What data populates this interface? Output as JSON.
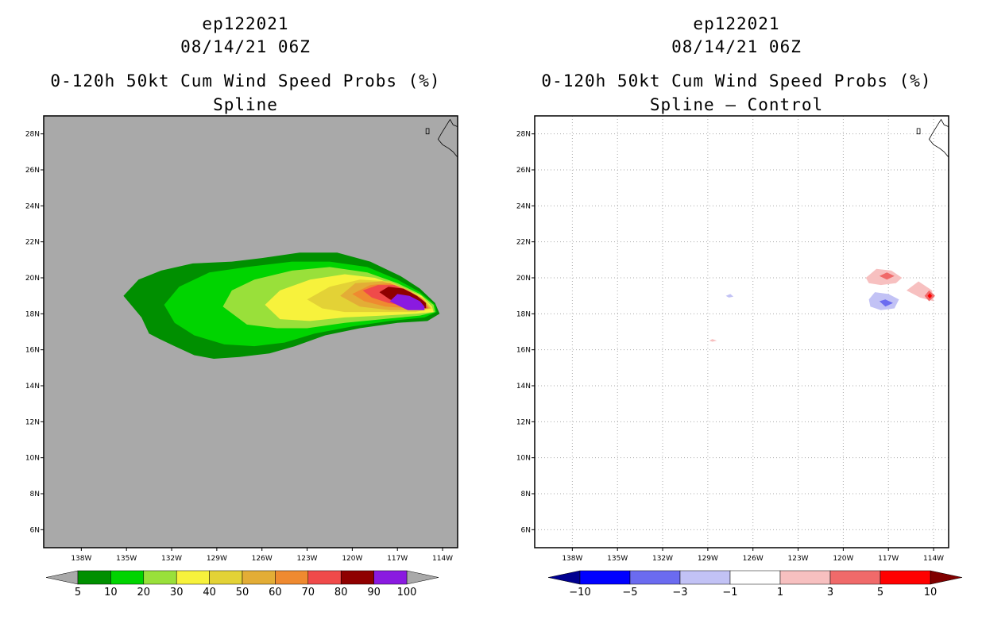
{
  "panels": [
    {
      "storm_id": "ep122021",
      "datetime": "08/14/21 06Z",
      "title": "0-120h 50kt Cum Wind Speed Probs (%)",
      "subtitle": "Spline"
    },
    {
      "storm_id": "ep122021",
      "datetime": "08/14/21 06Z",
      "title": "0-120h 50kt Cum Wind Speed Probs (%)",
      "subtitle": "Spline — Control"
    }
  ],
  "chart_data": [
    {
      "type": "heatmap",
      "title": "0-120h 50kt Cum Wind Speed Probs (%)",
      "subtitle": "Spline",
      "xlim": [
        -140.5,
        -113
      ],
      "ylim": [
        5,
        29
      ],
      "x_ticks": [
        "138W",
        "135W",
        "132W",
        "129W",
        "126W",
        "123W",
        "120W",
        "117W",
        "114W"
      ],
      "x_tick_values": [
        -138,
        -135,
        -132,
        -129,
        -126,
        -123,
        -120,
        -117,
        -114
      ],
      "y_ticks": [
        "6N",
        "8N",
        "10N",
        "12N",
        "14N",
        "16N",
        "18N",
        "20N",
        "22N",
        "24N",
        "26N",
        "28N"
      ],
      "y_tick_values": [
        6,
        8,
        10,
        12,
        14,
        16,
        18,
        20,
        22,
        24,
        26,
        28
      ],
      "grid": false,
      "background_color": "#a9a9a9",
      "colorbar": {
        "labels": [
          "5",
          "10",
          "20",
          "30",
          "40",
          "50",
          "60",
          "70",
          "80",
          "90",
          "100"
        ],
        "colors": [
          "#008f00",
          "#00d400",
          "#99e03a",
          "#f7f23c",
          "#e3d236",
          "#e3ad36",
          "#ef8a30",
          "#f04a4a",
          "#8f0000",
          "#8a1ae0"
        ],
        "low_color": "#a9a9a9",
        "high_color": "#a9a9a9"
      },
      "contours": [
        {
          "level": "5",
          "color": "#008f00",
          "points": [
            [
              -135.2,
              19.0
            ],
            [
              -134.2,
              19.9
            ],
            [
              -132.7,
              20.4
            ],
            [
              -130.6,
              20.8
            ],
            [
              -128.0,
              20.9
            ],
            [
              -126.0,
              21.1
            ],
            [
              -123.5,
              21.4
            ],
            [
              -121.0,
              21.4
            ],
            [
              -118.8,
              20.9
            ],
            [
              -116.8,
              20.1
            ],
            [
              -115.5,
              19.4
            ],
            [
              -114.5,
              18.6
            ],
            [
              -114.2,
              18.0
            ],
            [
              -115.0,
              17.6
            ],
            [
              -117.0,
              17.5
            ],
            [
              -119.5,
              17.2
            ],
            [
              -121.8,
              16.8
            ],
            [
              -123.8,
              16.2
            ],
            [
              -125.5,
              15.8
            ],
            [
              -127.5,
              15.6
            ],
            [
              -129.2,
              15.5
            ],
            [
              -130.5,
              15.7
            ],
            [
              -131.8,
              16.2
            ],
            [
              -132.8,
              16.6
            ],
            [
              -133.5,
              16.9
            ],
            [
              -134.0,
              17.8
            ]
          ]
        },
        {
          "level": "10",
          "color": "#00d400",
          "points": [
            [
              -132.5,
              18.5
            ],
            [
              -131.5,
              19.5
            ],
            [
              -129.5,
              20.3
            ],
            [
              -127.0,
              20.6
            ],
            [
              -124.0,
              20.9
            ],
            [
              -121.5,
              20.9
            ],
            [
              -119.0,
              20.6
            ],
            [
              -117.0,
              19.9
            ],
            [
              -115.5,
              19.2
            ],
            [
              -114.5,
              18.5
            ],
            [
              -114.4,
              18.1
            ],
            [
              -115.2,
              17.8
            ],
            [
              -117.5,
              17.6
            ],
            [
              -120.0,
              17.3
            ],
            [
              -122.5,
              16.9
            ],
            [
              -124.5,
              16.4
            ],
            [
              -126.5,
              16.2
            ],
            [
              -128.5,
              16.3
            ],
            [
              -130.5,
              16.8
            ],
            [
              -131.8,
              17.5
            ]
          ]
        },
        {
          "level": "20",
          "color": "#99e03a",
          "points": [
            [
              -128.6,
              18.4
            ],
            [
              -128.0,
              19.3
            ],
            [
              -126.5,
              19.9
            ],
            [
              -124.0,
              20.4
            ],
            [
              -121.5,
              20.6
            ],
            [
              -119.0,
              20.3
            ],
            [
              -117.0,
              19.7
            ],
            [
              -115.5,
              19.1
            ],
            [
              -114.6,
              18.5
            ],
            [
              -114.5,
              18.1
            ],
            [
              -115.5,
              17.9
            ],
            [
              -118.0,
              17.7
            ],
            [
              -120.5,
              17.5
            ],
            [
              -123.0,
              17.2
            ],
            [
              -125.0,
              17.2
            ],
            [
              -127.0,
              17.4
            ]
          ]
        },
        {
          "level": "30",
          "color": "#f7f23c",
          "points": [
            [
              -125.8,
              18.5
            ],
            [
              -124.8,
              19.3
            ],
            [
              -122.8,
              19.9
            ],
            [
              -120.5,
              20.2
            ],
            [
              -118.5,
              20.0
            ],
            [
              -116.8,
              19.5
            ],
            [
              -115.4,
              19.0
            ],
            [
              -114.7,
              18.4
            ],
            [
              -114.6,
              18.1
            ],
            [
              -115.8,
              18.0
            ],
            [
              -118.0,
              17.9
            ],
            [
              -120.5,
              17.8
            ],
            [
              -122.8,
              17.6
            ],
            [
              -124.8,
              17.7
            ]
          ]
        },
        {
          "level": "40",
          "color": "#e3d236",
          "points": [
            [
              -123.0,
              18.8
            ],
            [
              -121.5,
              19.5
            ],
            [
              -119.5,
              19.9
            ],
            [
              -117.5,
              19.8
            ],
            [
              -116.2,
              19.3
            ],
            [
              -115.2,
              18.8
            ],
            [
              -114.7,
              18.3
            ],
            [
              -115.8,
              18.1
            ],
            [
              -118.0,
              18.1
            ],
            [
              -120.5,
              18.1
            ],
            [
              -122.0,
              18.3
            ]
          ]
        },
        {
          "level": "50",
          "color": "#e3ad36",
          "points": [
            [
              -120.8,
              19.0
            ],
            [
              -119.8,
              19.7
            ],
            [
              -118.0,
              19.8
            ],
            [
              -116.5,
              19.4
            ],
            [
              -115.4,
              18.9
            ],
            [
              -114.8,
              18.3
            ],
            [
              -115.8,
              18.2
            ],
            [
              -117.5,
              18.2
            ],
            [
              -119.5,
              18.4
            ]
          ]
        },
        {
          "level": "60",
          "color": "#ef8a30",
          "points": [
            [
              -120.0,
              19.1
            ],
            [
              -118.8,
              19.6
            ],
            [
              -117.5,
              19.7
            ],
            [
              -116.3,
              19.3
            ],
            [
              -115.3,
              18.8
            ],
            [
              -114.9,
              18.3
            ],
            [
              -116.0,
              18.3
            ],
            [
              -117.8,
              18.4
            ],
            [
              -119.2,
              18.7
            ]
          ]
        },
        {
          "level": "70",
          "color": "#f04a4a",
          "points": [
            [
              -119.3,
              19.3
            ],
            [
              -118.3,
              19.6
            ],
            [
              -117.2,
              19.6
            ],
            [
              -116.1,
              19.2
            ],
            [
              -115.2,
              18.7
            ],
            [
              -115.0,
              18.3
            ],
            [
              -116.2,
              18.4
            ],
            [
              -117.6,
              18.6
            ],
            [
              -118.7,
              18.9
            ]
          ]
        },
        {
          "level": "80",
          "color": "#8f0000",
          "points": [
            [
              -118.2,
              19.2
            ],
            [
              -117.6,
              19.5
            ],
            [
              -116.6,
              19.4
            ],
            [
              -115.7,
              19.0
            ],
            [
              -115.1,
              18.6
            ],
            [
              -115.1,
              18.3
            ],
            [
              -116.4,
              18.5
            ],
            [
              -117.5,
              18.8
            ]
          ]
        },
        {
          "level": "90",
          "color": "#8a1ae0",
          "points": [
            [
              -117.5,
              18.7
            ],
            [
              -117.0,
              19.1
            ],
            [
              -116.2,
              19.0
            ],
            [
              -115.5,
              18.7
            ],
            [
              -115.2,
              18.4
            ],
            [
              -115.2,
              18.2
            ],
            [
              -116.3,
              18.2
            ],
            [
              -116.8,
              18.4
            ]
          ]
        }
      ]
    },
    {
      "type": "heatmap",
      "title": "0-120h 50kt Cum Wind Speed Probs (%)",
      "subtitle": "Spline — Control",
      "xlim": [
        -140.5,
        -113
      ],
      "ylim": [
        5,
        29
      ],
      "x_ticks": [
        "138W",
        "135W",
        "132W",
        "129W",
        "126W",
        "123W",
        "120W",
        "117W",
        "114W"
      ],
      "x_tick_values": [
        -138,
        -135,
        -132,
        -129,
        -126,
        -123,
        -120,
        -117,
        -114
      ],
      "y_ticks": [
        "6N",
        "8N",
        "10N",
        "12N",
        "14N",
        "16N",
        "18N",
        "20N",
        "22N",
        "24N",
        "26N",
        "28N"
      ],
      "y_tick_values": [
        6,
        8,
        10,
        12,
        14,
        16,
        18,
        20,
        22,
        24,
        26,
        28
      ],
      "grid": true,
      "background_color": "#ffffff",
      "colorbar": {
        "labels": [
          "−10",
          "−5",
          "−3",
          "−1",
          "1",
          "3",
          "5",
          "10"
        ],
        "colors": [
          "#0000ff",
          "#6b6bf0",
          "#c2c2f5",
          "#ffffff",
          "#f7c0c0",
          "#f06a6a",
          "#ff0000"
        ],
        "low_color": "#000090",
        "high_color": "#800000"
      },
      "contours": [
        {
          "level": "1",
          "color": "#f7c0c0",
          "points": [
            [
              -118.5,
              20.0
            ],
            [
              -117.8,
              20.5
            ],
            [
              -116.8,
              20.4
            ],
            [
              -116.1,
              20.0
            ],
            [
              -116.5,
              19.7
            ],
            [
              -117.5,
              19.6
            ],
            [
              -118.3,
              19.7
            ]
          ]
        },
        {
          "level": "3",
          "color": "#f06a6a",
          "points": [
            [
              -117.6,
              20.1
            ],
            [
              -117.1,
              20.3
            ],
            [
              -116.6,
              20.1
            ],
            [
              -117.1,
              19.9
            ]
          ]
        },
        {
          "level": "-1",
          "color": "#c2c2f5",
          "points": [
            [
              -118.3,
              18.8
            ],
            [
              -117.9,
              19.2
            ],
            [
              -117.0,
              19.1
            ],
            [
              -116.3,
              18.8
            ],
            [
              -116.6,
              18.3
            ],
            [
              -117.5,
              18.2
            ],
            [
              -118.2,
              18.4
            ]
          ]
        },
        {
          "level": "-3",
          "color": "#6b6bf0",
          "points": [
            [
              -117.6,
              18.7
            ],
            [
              -117.2,
              18.8
            ],
            [
              -116.7,
              18.6
            ],
            [
              -117.2,
              18.4
            ]
          ]
        },
        {
          "level": "1",
          "color": "#f7c0c0",
          "points": [
            [
              -115.8,
              19.3
            ],
            [
              -115.0,
              19.8
            ],
            [
              -114.1,
              19.3
            ],
            [
              -114.0,
              18.7
            ],
            [
              -114.9,
              18.9
            ]
          ]
        },
        {
          "level": "3",
          "color": "#f06a6a",
          "points": [
            [
              -114.6,
              19.0
            ],
            [
              -114.3,
              19.3
            ],
            [
              -113.9,
              19.0
            ],
            [
              -114.3,
              18.7
            ]
          ]
        },
        {
          "level": "5",
          "color": "#ff0000",
          "points": [
            [
              -114.4,
              19.0
            ],
            [
              -114.25,
              19.15
            ],
            [
              -114.1,
              19.0
            ],
            [
              -114.25,
              18.85
            ]
          ]
        },
        {
          "level": "-1",
          "color": "#c2c2f5",
          "points": [
            [
              -127.8,
              19.0
            ],
            [
              -127.5,
              19.1
            ],
            [
              -127.3,
              18.95
            ],
            [
              -127.6,
              18.9
            ]
          ]
        },
        {
          "level": "1",
          "color": "#f7c0c0",
          "points": [
            [
              -128.9,
              16.5
            ],
            [
              -128.7,
              16.6
            ],
            [
              -128.4,
              16.5
            ],
            [
              -128.7,
              16.45
            ]
          ]
        }
      ]
    }
  ]
}
